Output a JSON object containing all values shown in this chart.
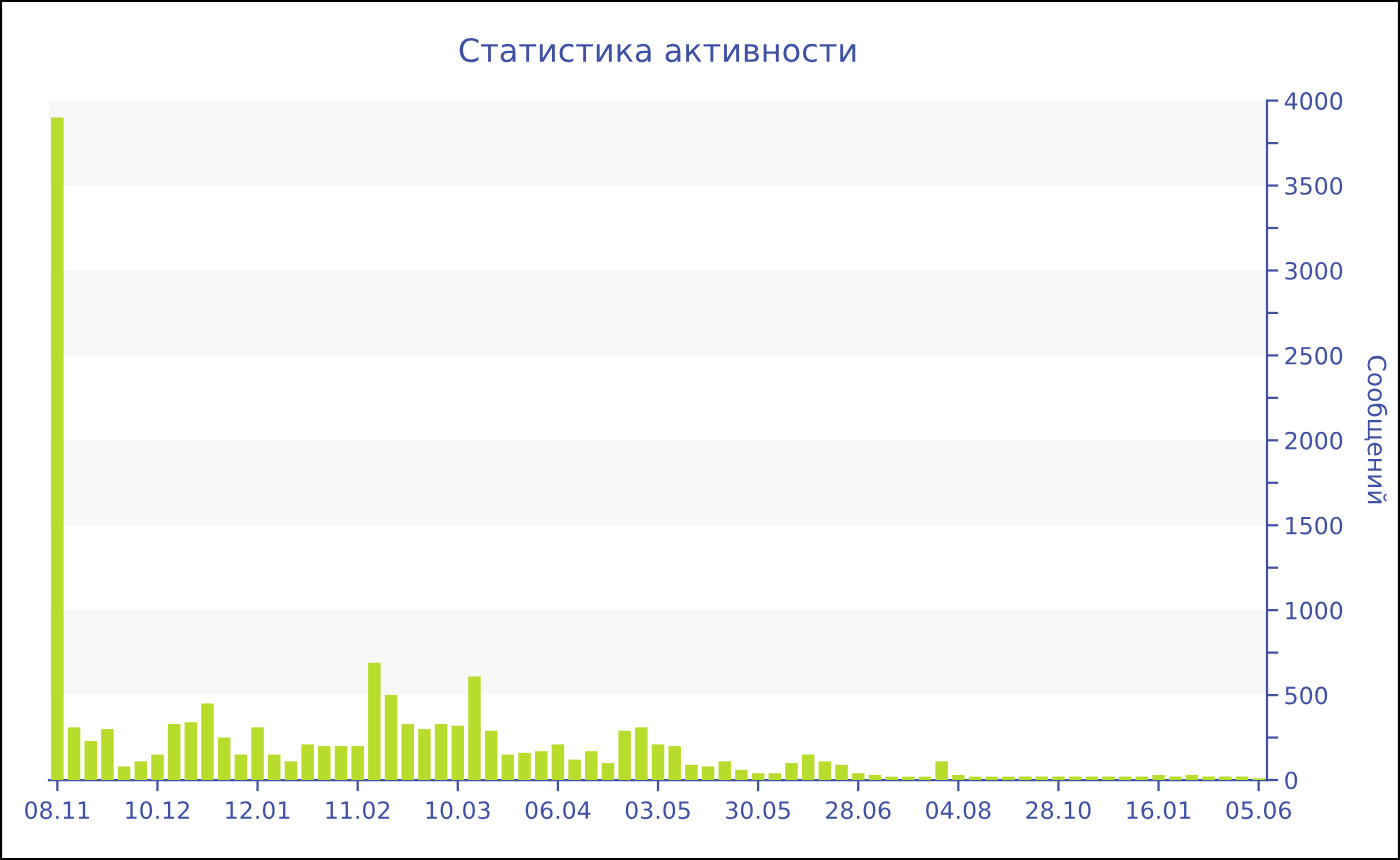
{
  "chart_data": {
    "type": "bar",
    "title": "Статистика активности",
    "ylabel": "Сообщений",
    "categories": [
      "08.11",
      null,
      null,
      null,
      null,
      null,
      "10.12",
      null,
      null,
      null,
      null,
      null,
      "12.01",
      null,
      null,
      null,
      null,
      null,
      "11.02",
      null,
      null,
      null,
      null,
      null,
      "10.03",
      null,
      null,
      null,
      null,
      null,
      "06.04",
      null,
      null,
      null,
      null,
      null,
      "03.05",
      null,
      null,
      null,
      null,
      null,
      "30.05",
      null,
      null,
      null,
      null,
      null,
      "28.06",
      null,
      null,
      null,
      null,
      null,
      "04.08",
      null,
      null,
      null,
      null,
      null,
      "28.10",
      null,
      null,
      null,
      null,
      null,
      "16.01",
      null,
      null,
      null,
      null,
      null,
      "05.06"
    ],
    "values": [
      3900,
      310,
      230,
      300,
      80,
      110,
      150,
      330,
      340,
      450,
      250,
      150,
      310,
      150,
      110,
      210,
      200,
      200,
      200,
      690,
      500,
      330,
      300,
      330,
      320,
      610,
      290,
      150,
      160,
      170,
      210,
      120,
      170,
      100,
      290,
      310,
      210,
      200,
      90,
      80,
      110,
      60,
      40,
      40,
      100,
      150,
      110,
      90,
      40,
      30,
      20,
      20,
      20,
      110,
      30,
      20,
      20,
      20,
      20,
      20,
      20,
      20,
      20,
      20,
      20,
      20,
      30,
      20,
      30,
      20,
      20,
      20,
      10
    ],
    "color": "#b8dc2c",
    "ylim": [
      0,
      4000
    ],
    "yticks": [
      0,
      {
        "value": 250,
        "label": null
      },
      500,
      {
        "value": 750,
        "label": null
      },
      1000,
      {
        "value": 1250,
        "label": null
      },
      1500,
      {
        "value": 1750,
        "label": null
      },
      2000,
      {
        "value": 2250,
        "label": null
      },
      2500,
      {
        "value": 2750,
        "label": null
      },
      3000,
      {
        "value": 3250,
        "label": null
      },
      3500,
      {
        "value": 3750,
        "label": null
      },
      4000
    ],
    "bands": [
      {
        "axis": "y",
        "from": 500,
        "to": 1000,
        "color": "#f7f7f7"
      },
      {
        "axis": "y",
        "from": 1500,
        "to": 2000,
        "color": "#f7f7f7"
      },
      {
        "axis": "y",
        "from": 2500,
        "to": 3000,
        "color": "#f7f7f7"
      },
      {
        "axis": "y",
        "from": 3500,
        "to": 4000,
        "color": "#f7f7f7"
      }
    ]
  }
}
